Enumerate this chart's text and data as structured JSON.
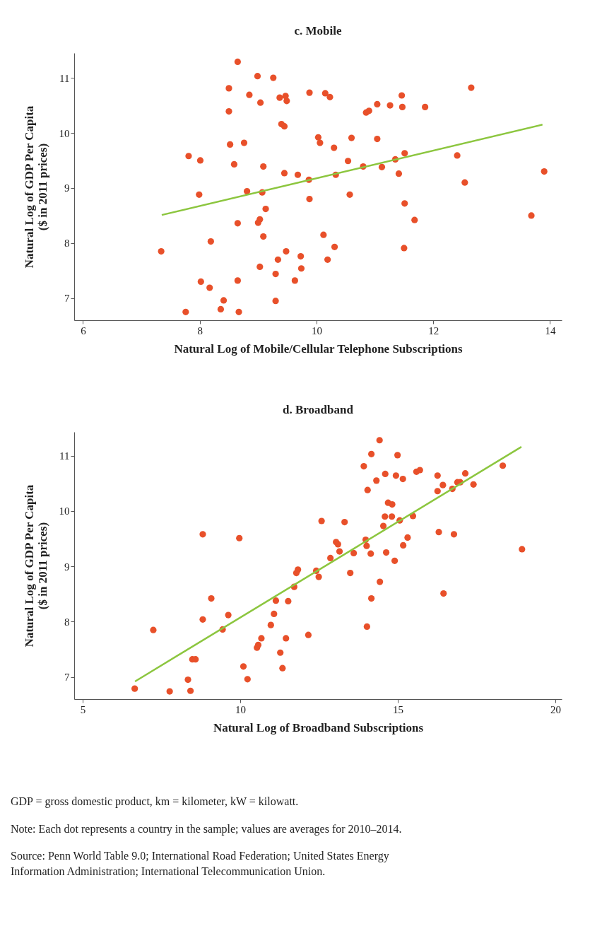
{
  "chart_data": [
    {
      "type": "scatter",
      "title": "c. Mobile",
      "xlabel": "Natural Log of Mobile/Cellular Telephone Subscriptions",
      "ylabel": [
        "Natural Log of GDP Per Capita",
        "($ in 2011 prices)"
      ],
      "xlim": [
        5.85,
        14.2
      ],
      "ylim": [
        6.6,
        11.45
      ],
      "xticks": [
        6,
        8,
        10,
        12,
        14
      ],
      "yticks": [
        7,
        8,
        9,
        10,
        11
      ],
      "grid": false,
      "legend": false,
      "series": [
        {
          "marker": "circle",
          "color": "#e8502a",
          "x": [
            8.65,
            8.99,
            9.26,
            8.5,
            8.85,
            9.04,
            9.37,
            9.47,
            9.49,
            9.88,
            8.5,
            9.4,
            9.45,
            10.03,
            10.06,
            8.52,
            8.76,
            7.81,
            8.01,
            8.59,
            9.09,
            9.45,
            9.68,
            9.87,
            8.81,
            9.07,
            7.99,
            9.88,
            9.13,
            8.65,
            9.03,
            9.0,
            9.09,
            10.12,
            8.19,
            7.34,
            9.48,
            9.73,
            9.34,
            9.03,
            9.74,
            9.3,
            8.02,
            8.65,
            9.63,
            8.17,
            8.41,
            9.3,
            8.36,
            7.76,
            8.67,
            10.15,
            10.23,
            11.46,
            11.04,
            11.26,
            11.47,
            11.86,
            12.65,
            10.85,
            10.9,
            10.6,
            11.04,
            10.3,
            11.51,
            12.41,
            11.35,
            10.54,
            10.8,
            11.12,
            10.33,
            11.41,
            12.54,
            13.9,
            10.57,
            11.51,
            11.68,
            13.68,
            10.31,
            11.5,
            10.19
          ],
          "values": [
            11.29,
            11.03,
            11.0,
            10.81,
            10.69,
            10.55,
            10.64,
            10.67,
            10.58,
            10.73,
            10.39,
            10.16,
            10.12,
            9.92,
            9.82,
            9.79,
            9.82,
            9.58,
            9.5,
            9.43,
            9.39,
            9.27,
            9.24,
            9.15,
            8.94,
            8.92,
            8.88,
            8.8,
            8.62,
            8.36,
            8.43,
            8.37,
            8.12,
            8.15,
            8.03,
            7.85,
            7.85,
            7.76,
            7.7,
            7.57,
            7.54,
            7.44,
            7.3,
            7.32,
            7.32,
            7.19,
            6.96,
            6.95,
            6.8,
            6.75,
            6.75,
            10.72,
            10.65,
            10.68,
            10.52,
            10.5,
            10.47,
            10.47,
            10.82,
            10.37,
            10.4,
            9.91,
            9.89,
            9.73,
            9.63,
            9.59,
            9.52,
            9.49,
            9.39,
            9.38,
            9.24,
            9.26,
            9.1,
            9.3,
            8.88,
            8.72,
            8.42,
            8.5,
            7.93,
            7.91,
            7.7
          ]
        },
        {
          "type": "line",
          "marker": "none",
          "color": "#8cc63f",
          "x": [
            7.35,
            13.87
          ],
          "values": [
            8.51,
            10.15
          ]
        }
      ]
    },
    {
      "type": "scatter",
      "title": "d. Broadband",
      "xlabel": "Natural Log of Broadband Subscriptions",
      "ylabel": [
        "Natural Log of GDP Per Capita",
        "($ in 2011 prices)"
      ],
      "xlim": [
        4.73,
        20.2
      ],
      "ylim": [
        6.6,
        11.43
      ],
      "xticks": [
        5,
        10,
        15,
        20
      ],
      "yticks": [
        7,
        8,
        9,
        10,
        11
      ],
      "grid": false,
      "legend": false,
      "series": [
        {
          "marker": "circle",
          "color": "#e8502a",
          "x": [
            6.65,
            7.76,
            8.42,
            8.34,
            7.24,
            8.81,
            9.97,
            12.58,
            8.48,
            8.58,
            9.08,
            8.81,
            9.62,
            9.44,
            10.1,
            10.23,
            10.53,
            10.57,
            10.67,
            10.97,
            11.07,
            11.13,
            11.52,
            11.71,
            11.78,
            11.83,
            11.27,
            11.34,
            11.45,
            12.16,
            12.41,
            12.49,
            14.42,
            14.16,
            14.99,
            13.92,
            14.6,
            14.32,
            14.94,
            15.16,
            15.59,
            15.7,
            16.26,
            17.14,
            18.33,
            14.04,
            16.43,
            16.26,
            16.73,
            16.89,
            16.98,
            17.4,
            14.69,
            14.82,
            14.59,
            14.81,
            15.06,
            15.48,
            13.31,
            14.54,
            16.3,
            16.78,
            13.98,
            14.01,
            15.31,
            15.17,
            13.04,
            13.1,
            13.15,
            13.6,
            14.14,
            14.63,
            14.9,
            18.94,
            12.86,
            13.49,
            14.43,
            16.45,
            14.16,
            14.02
          ],
          "values": [
            6.79,
            6.74,
            6.75,
            6.95,
            7.85,
            9.58,
            9.51,
            9.82,
            7.32,
            7.32,
            8.42,
            8.04,
            8.12,
            7.86,
            7.19,
            6.96,
            7.53,
            7.58,
            7.7,
            7.94,
            8.14,
            8.38,
            8.37,
            8.63,
            8.88,
            8.94,
            7.44,
            7.16,
            7.7,
            7.76,
            8.92,
            8.81,
            11.28,
            11.03,
            11.01,
            10.81,
            10.67,
            10.55,
            10.64,
            10.58,
            10.71,
            10.74,
            10.64,
            10.68,
            10.82,
            10.38,
            10.47,
            10.36,
            10.4,
            10.52,
            10.52,
            10.48,
            10.15,
            10.12,
            9.9,
            9.9,
            9.83,
            9.91,
            9.8,
            9.73,
            9.62,
            9.58,
            9.48,
            9.37,
            9.52,
            9.38,
            9.44,
            9.4,
            9.27,
            9.24,
            9.23,
            9.25,
            9.1,
            9.31,
            9.15,
            8.88,
            8.72,
            8.51,
            8.42,
            7.91
          ]
        },
        {
          "type": "line",
          "marker": "none",
          "color": "#8cc63f",
          "x": [
            6.66,
            18.92
          ],
          "values": [
            6.92,
            11.16
          ]
        }
      ],
      "annotations": [
        "GDP = gross domestic product, km = kilometer, kW = kilowatt.",
        "Note: Each dot represents a country in the sample; values are averages for 2010–2014.",
        "Source: Penn World Table 9.0; International Road Federation; United States Energy Information Administration; International Telecommunication Union."
      ]
    }
  ]
}
